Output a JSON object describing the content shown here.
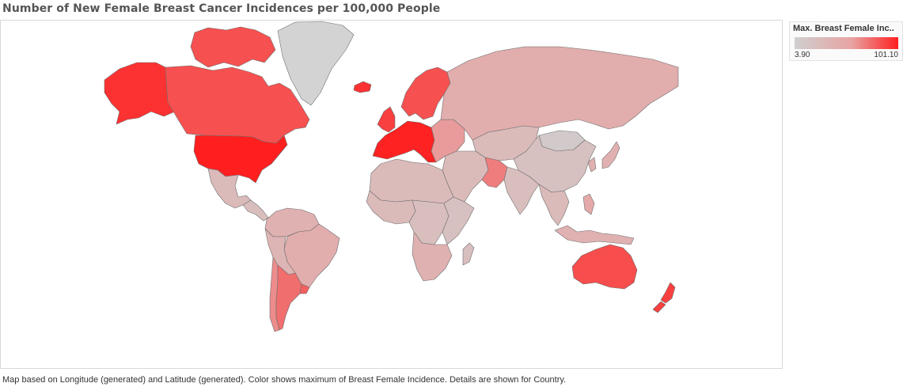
{
  "title": "Number of New Female Breast Cancer Incidences per 100,000 People",
  "legend": {
    "title": "Max. Breast Female Inc..",
    "min_label": "3.90",
    "max_label": "101.10",
    "min_value": 3.9,
    "max_value": 101.1,
    "color_low": "#cfcfcf",
    "color_mid": "#e8a3a3",
    "color_high": "#ff1f1f"
  },
  "caption": "Map based on Longitude (generated) and Latitude (generated).  Color shows maximum of  Breast Female Incidence.  Details are shown for Country.",
  "map": {
    "no_data_color": "#d3d3d3",
    "regions": [
      {
        "id": "alaska",
        "value": 95
      },
      {
        "id": "canada",
        "value": 85
      },
      {
        "id": "canada-arctic",
        "value": 85
      },
      {
        "id": "usa",
        "value": 101.1
      },
      {
        "id": "mexico",
        "value": 30
      },
      {
        "id": "central-america",
        "value": 25
      },
      {
        "id": "colombia-venezuela",
        "value": 40
      },
      {
        "id": "brazil",
        "value": 45
      },
      {
        "id": "peru-bolivia",
        "value": 35
      },
      {
        "id": "argentina",
        "value": 75
      },
      {
        "id": "chile",
        "value": 65
      },
      {
        "id": "uruguay",
        "value": 80
      },
      {
        "id": "iceland",
        "value": 95
      },
      {
        "id": "uk-ireland",
        "value": 90
      },
      {
        "id": "scandinavia",
        "value": 85
      },
      {
        "id": "western-europe",
        "value": 100
      },
      {
        "id": "eastern-europe",
        "value": 60
      },
      {
        "id": "russia",
        "value": 45
      },
      {
        "id": "central-asia",
        "value": 30
      },
      {
        "id": "middle-east",
        "value": 30
      },
      {
        "id": "pakistan",
        "value": 70
      },
      {
        "id": "india",
        "value": 25
      },
      {
        "id": "china",
        "value": 22
      },
      {
        "id": "mongolia",
        "value": 10
      },
      {
        "id": "japan-korea",
        "value": 42
      },
      {
        "id": "southeast-asia",
        "value": 30
      },
      {
        "id": "philippines",
        "value": 50
      },
      {
        "id": "indonesia",
        "value": 40
      },
      {
        "id": "north-africa",
        "value": 30
      },
      {
        "id": "west-africa",
        "value": 30
      },
      {
        "id": "central-africa",
        "value": 25
      },
      {
        "id": "east-africa",
        "value": 22
      },
      {
        "id": "southern-africa",
        "value": 40
      },
      {
        "id": "madagascar",
        "value": 25
      },
      {
        "id": "australia",
        "value": 86
      },
      {
        "id": "new-zealand",
        "value": 90
      },
      {
        "id": "greenland",
        "value": null
      }
    ]
  }
}
